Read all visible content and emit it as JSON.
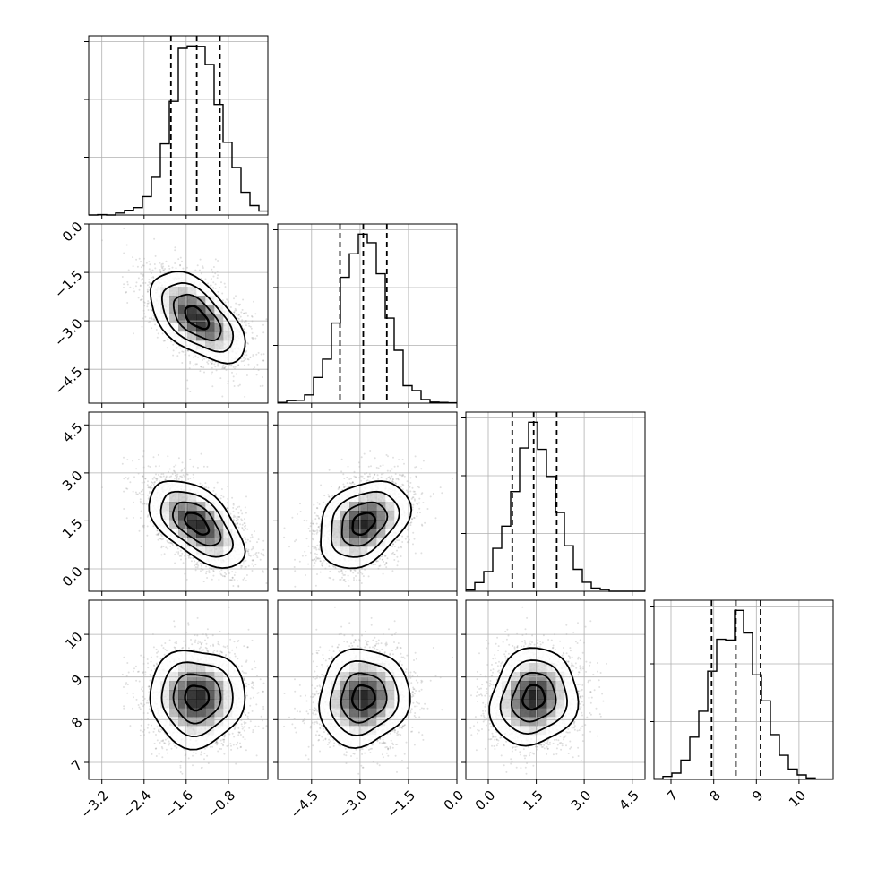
{
  "chart_data": {
    "type": "corner",
    "n_params": 4,
    "grid": true,
    "colors": {
      "line": "#000000",
      "grid": "#b0b0b0",
      "density": "#000000",
      "background": "#ffffff"
    },
    "params": [
      {
        "index": 0,
        "range": [
          -3.45,
          -0.05
        ],
        "ticks": [
          -3.2,
          -2.4,
          -1.6,
          -0.8
        ],
        "tick_labels": [
          "−3.2",
          "−2.4",
          "−1.6",
          "−0.8"
        ],
        "mean": -1.4,
        "sd": 0.45,
        "quantiles": [
          -1.89,
          -1.4,
          -0.96
        ]
      },
      {
        "index": 1,
        "range": [
          -5.55,
          0.0
        ],
        "ticks": [
          -4.5,
          -3.0,
          -1.5,
          0.0
        ],
        "tick_labels": [
          "−4.5",
          "−3.0",
          "−1.5",
          "0.0"
        ],
        "mean": -2.9,
        "sd": 0.7,
        "quantiles": [
          -3.62,
          -2.9,
          -2.17
        ]
      },
      {
        "index": 2,
        "range": [
          -0.7,
          4.9
        ],
        "ticks": [
          0.0,
          1.5,
          3.0,
          4.5
        ],
        "tick_labels": [
          "0.0",
          "1.5",
          "3.0",
          "4.5"
        ],
        "mean": 1.42,
        "sd": 0.68,
        "quantiles": [
          0.75,
          1.42,
          2.14
        ]
      },
      {
        "index": 3,
        "range": [
          6.6,
          10.8
        ],
        "ticks": [
          7,
          8,
          9,
          10
        ],
        "tick_labels": [
          "7",
          "8",
          "9",
          "10"
        ],
        "mean": 8.52,
        "sd": 0.57,
        "quantiles": [
          7.95,
          8.52,
          9.1
        ]
      }
    ],
    "correlations": [
      {
        "row": 1,
        "col": 0,
        "rho": -0.55
      },
      {
        "row": 2,
        "col": 0,
        "rho": -0.55
      },
      {
        "row": 2,
        "col": 1,
        "rho": 0.32
      },
      {
        "row": 3,
        "col": 0,
        "rho": 0.0
      },
      {
        "row": 3,
        "col": 1,
        "rho": 0.08
      },
      {
        "row": 3,
        "col": 2,
        "rho": 0.1
      }
    ],
    "contour_levels_sigma": [
      0.5,
      1.0,
      1.5,
      2.0
    ],
    "histogram_bins": 20
  }
}
